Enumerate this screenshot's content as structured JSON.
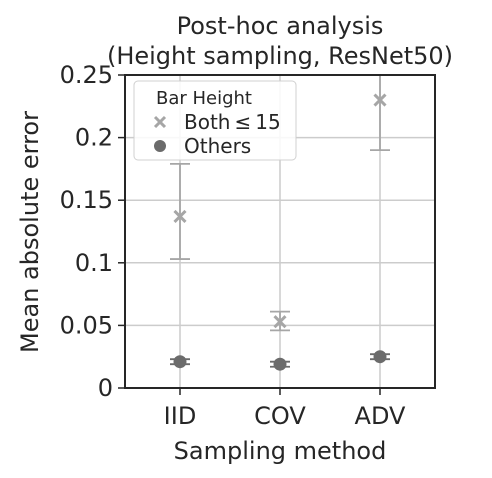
{
  "chart_data": {
    "type": "scatter",
    "title": "Post-hoc analysis",
    "subtitle": "(Height sampling, ResNet50)",
    "xlabel": "Sampling method",
    "ylabel": "Mean absolute error",
    "categories": [
      "IID",
      "COV",
      "ADV"
    ],
    "ylim": [
      0,
      0.25
    ],
    "yticks": [
      "0",
      "0.05",
      "0.1",
      "0.15",
      "0.2",
      "0.25"
    ],
    "grid": true,
    "legend": {
      "title": "Bar Height",
      "placement": "top-left",
      "entries": [
        "Both ≤ 15",
        "Others"
      ]
    },
    "series": [
      {
        "name": "Both ≤ 15",
        "marker": "x",
        "color": "#a6a6a6",
        "values": [
          0.137,
          0.053,
          0.23
        ],
        "err_low": [
          0.103,
          0.046,
          0.19
        ],
        "err_high": [
          0.179,
          0.061,
          0.273
        ]
      },
      {
        "name": "Others",
        "marker": "circle",
        "color": "#6b6b6b",
        "values": [
          0.021,
          0.019,
          0.025
        ],
        "err_low": [
          0.019,
          0.017,
          0.023
        ],
        "err_high": [
          0.023,
          0.021,
          0.027
        ]
      }
    ]
  }
}
